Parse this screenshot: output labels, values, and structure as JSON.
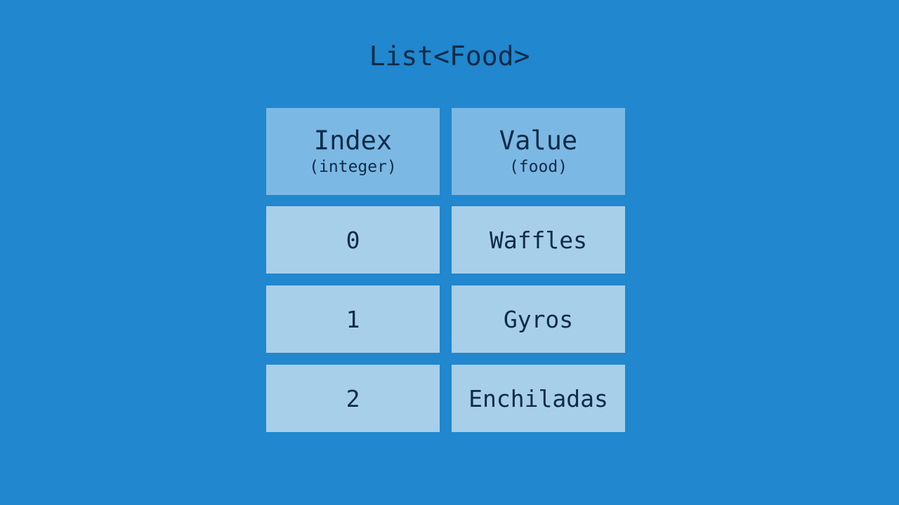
{
  "title": "List<Food>",
  "headers": [
    {
      "label": "Index",
      "sub": "(integer)"
    },
    {
      "label": "Value",
      "sub": "(food)"
    }
  ],
  "rows": [
    {
      "index": "0",
      "value": "Waffles"
    },
    {
      "index": "1",
      "value": "Gyros"
    },
    {
      "index": "2",
      "value": "Enchiladas"
    }
  ],
  "colors": {
    "background": "#2187ce",
    "header": "#7cb8e4",
    "cell": "#a8cfea",
    "text": "#0e2b47"
  }
}
